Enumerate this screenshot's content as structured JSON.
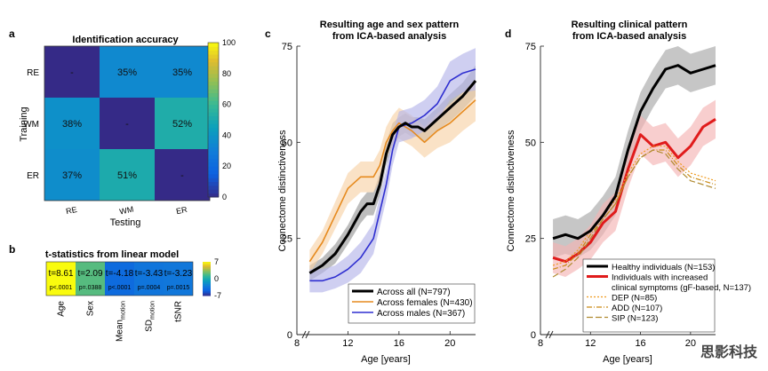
{
  "panels": {
    "a": "a",
    "b": "b",
    "c": "c",
    "d": "d"
  },
  "watermark": "思影科技",
  "chart_data": [
    {
      "id": "a",
      "type": "heatmap",
      "title": "Identification accuracy",
      "xlabel": "Testing",
      "ylabel": "Training",
      "rows": [
        "RE",
        "WM",
        "ER"
      ],
      "columns": [
        "RE",
        "WM",
        "ER"
      ],
      "values": [
        [
          null,
          35,
          35
        ],
        [
          38,
          null,
          52
        ],
        [
          37,
          51,
          null
        ]
      ],
      "cell_labels": [
        [
          "-",
          "35%",
          "35%"
        ],
        [
          "38%",
          "-",
          "52%"
        ],
        [
          "37%",
          "51%",
          "-"
        ]
      ],
      "colorbar": {
        "range": [
          0,
          100
        ],
        "ticks": [
          0,
          20,
          40,
          60,
          80,
          100
        ],
        "colormap": "parula"
      }
    },
    {
      "id": "b",
      "type": "heatmap",
      "title": "t-statistics from linear model",
      "columns": [
        "Age",
        "Sex",
        "Mean_motion",
        "SD_motion",
        "tSNR"
      ],
      "column_labels": [
        {
          "main": "Age",
          "sub": ""
        },
        {
          "main": "Sex",
          "sub": ""
        },
        {
          "main": "Mean",
          "sub": "motion"
        },
        {
          "main": "SD",
          "sub": "motion"
        },
        {
          "main": "tSNR",
          "sub": ""
        }
      ],
      "values": [
        8.61,
        2.09,
        -4.18,
        -3.43,
        -3.23
      ],
      "t_labels": [
        "t=8.61",
        "t=2.09",
        "t=-4.18",
        "t=-3.43",
        "t=-3.23"
      ],
      "p_labels": [
        "p<.0001",
        "p=.0388",
        "p<.0001",
        "p=.0004",
        "p=.0015"
      ],
      "colorbar": {
        "range": [
          -7,
          7
        ],
        "ticks": [
          7,
          0,
          -7
        ],
        "colormap": "parula"
      }
    },
    {
      "id": "c",
      "type": "line",
      "title": "Resulting age and sex pattern",
      "subtitle": "from ICA-based analysis",
      "xlabel": "Age [years]",
      "ylabel": "Connectome distinctiveness",
      "xlim": [
        8,
        22
      ],
      "ylim": [
        0,
        75
      ],
      "xticks": [
        8,
        12,
        16,
        20
      ],
      "yticks": [
        0,
        25,
        50,
        75
      ],
      "legend_position": "bottom-right",
      "series": [
        {
          "name": "Across all (N=797)",
          "color": "#000000",
          "band": "#9a9a9a",
          "x": [
            9,
            10,
            11,
            12,
            13,
            13.5,
            14,
            14.5,
            15,
            15.5,
            16,
            16.5,
            17,
            17.5,
            18,
            19,
            20,
            21,
            22
          ],
          "y": [
            16,
            18,
            21,
            26,
            32,
            34,
            34,
            39,
            47,
            52,
            54,
            55,
            54,
            54,
            53,
            56,
            59,
            62,
            66
          ],
          "err": [
            2,
            2,
            2.5,
            2.5,
            3,
            3,
            3,
            3,
            3,
            3,
            2.5,
            2.5,
            2.5,
            2.5,
            3,
            3,
            3.5,
            3.5,
            4
          ]
        },
        {
          "name": "Across females (N=430)",
          "color": "#e68a1e",
          "band": "#f7d2a8",
          "x": [
            9,
            10,
            11,
            12,
            13,
            14,
            14.5,
            15,
            15.5,
            16,
            16.5,
            17,
            18,
            19,
            20,
            21,
            22
          ],
          "y": [
            19,
            24,
            31,
            38,
            41,
            41,
            44,
            50,
            53,
            55,
            54,
            53,
            50,
            53,
            55,
            58,
            61
          ],
          "err": [
            3,
            3,
            3.5,
            4,
            4,
            4,
            4,
            4,
            4,
            4,
            4,
            4,
            4,
            4.5,
            5,
            5,
            5.5
          ]
        },
        {
          "name": "Across males (N=367)",
          "color": "#2e2ed0",
          "band": "#b6b6ea",
          "x": [
            9,
            10,
            11,
            12,
            13,
            14,
            15,
            15.5,
            16,
            17,
            18,
            19,
            20,
            21,
            22
          ],
          "y": [
            14,
            14,
            15,
            17,
            20,
            25,
            39,
            48,
            54,
            55,
            57,
            60,
            66,
            68,
            69
          ],
          "err": [
            3,
            3,
            3,
            3.5,
            4,
            4,
            4,
            4,
            4,
            4,
            4,
            4.5,
            5,
            5,
            5.5
          ]
        }
      ]
    },
    {
      "id": "d",
      "type": "line",
      "title": "Resulting clinical pattern",
      "subtitle": "from ICA-based analysis",
      "xlabel": "Age [years]",
      "ylabel": "Connectome distinctiveness",
      "xlim": [
        8,
        22
      ],
      "ylim": [
        0,
        75
      ],
      "xticks": [
        8,
        12,
        16,
        20
      ],
      "yticks": [
        0,
        25,
        50,
        75
      ],
      "legend_position": "bottom",
      "series": [
        {
          "name": "Healthy individuals (N=153)",
          "color": "#000000",
          "band": "#a8a8a8",
          "dash": "",
          "x": [
            9,
            10,
            11,
            12,
            13,
            14,
            15,
            16,
            17,
            18,
            19,
            20,
            21,
            22
          ],
          "y": [
            25,
            26,
            25,
            27,
            31,
            36,
            48,
            58,
            64,
            69,
            70,
            68,
            69,
            70
          ],
          "err": [
            5,
            5,
            5,
            5,
            5,
            5,
            5,
            5,
            5,
            5,
            5,
            5,
            5,
            5
          ]
        },
        {
          "name": "Individuals with increased",
          "name2": "clinical symptoms (gF-based, N=137)",
          "color": "#e01b1b",
          "band": "#f5b3b3",
          "dash": "",
          "x": [
            9,
            10,
            11,
            12,
            13,
            14,
            15,
            16,
            17,
            18,
            19,
            20,
            21,
            22
          ],
          "y": [
            20,
            19,
            21,
            24,
            29,
            32,
            43,
            52,
            49,
            50,
            46,
            49,
            54,
            56
          ],
          "err": [
            4,
            4,
            4,
            4.5,
            5,
            5,
            5,
            5,
            5,
            5,
            5,
            5,
            5,
            5
          ]
        },
        {
          "name": "DEP (N=85)",
          "color": "#f09b1f",
          "band": "",
          "dash": "2,2",
          "x": [
            9,
            10,
            11,
            12,
            13,
            14,
            15,
            16,
            17,
            18,
            19,
            20,
            21,
            22
          ],
          "y": [
            18,
            19,
            22,
            27,
            31,
            35,
            42,
            47,
            49,
            49,
            45,
            42,
            41,
            40
          ],
          "err": []
        },
        {
          "name": "ADD (N=107)",
          "color": "#c98a14",
          "band": "",
          "dash": "6,2,1,2",
          "x": [
            9,
            10,
            11,
            12,
            13,
            14,
            15,
            16,
            17,
            18,
            19,
            20,
            21,
            22
          ],
          "y": [
            17,
            18,
            21,
            26,
            30,
            34,
            41,
            46,
            48,
            48,
            44,
            41,
            40,
            39
          ],
          "err": []
        },
        {
          "name": "SIP (N=123)",
          "color": "#b08a30",
          "band": "",
          "dash": "7,3",
          "x": [
            9,
            10,
            11,
            12,
            13,
            14,
            15,
            16,
            17,
            18,
            19,
            20,
            21,
            22
          ],
          "y": [
            15,
            17,
            20,
            25,
            30,
            34,
            41,
            46,
            48,
            47,
            43,
            40,
            39,
            38
          ],
          "err": []
        }
      ]
    }
  ]
}
